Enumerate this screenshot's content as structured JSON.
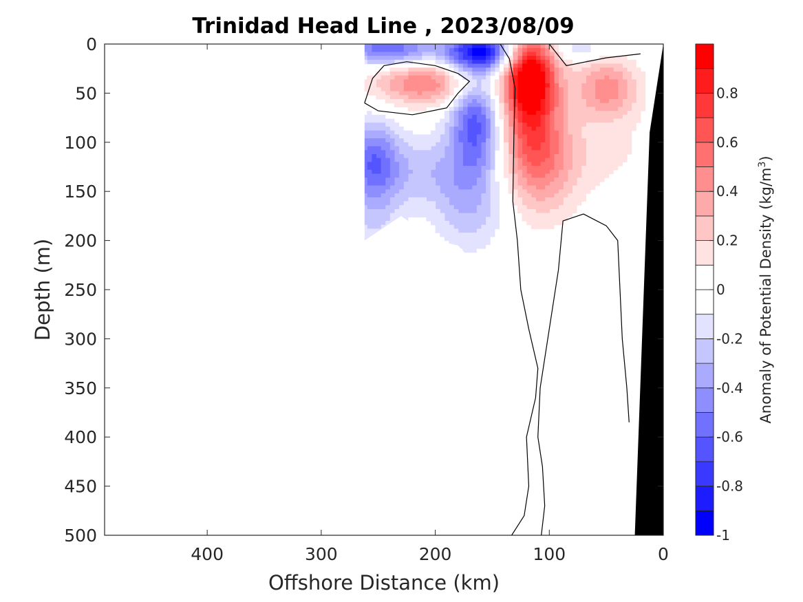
{
  "chart_data": {
    "type": "heatmap",
    "title": "Trinidad Head Line , 2023/08/09",
    "xlabel": "Offshore Distance (km)",
    "ylabel": "Depth (m)",
    "x_reversed": true,
    "y_reversed": true,
    "xlim": [
      0,
      490
    ],
    "ylim": [
      0,
      500
    ],
    "x_ticks": [
      "400",
      "300",
      "200",
      "100",
      "0"
    ],
    "x_tick_values": [
      400,
      300,
      200,
      100,
      0
    ],
    "y_ticks": [
      "0",
      "50",
      "100",
      "150",
      "200",
      "250",
      "300",
      "350",
      "400",
      "450",
      "500"
    ],
    "y_tick_values": [
      0,
      50,
      100,
      150,
      200,
      250,
      300,
      350,
      400,
      450,
      500
    ],
    "colorbar": {
      "label": "Anomaly of Potential Density (kg/m",
      "label_superscript": "3",
      "label_suffix": ")",
      "range": [
        -1,
        1
      ],
      "levels": [
        -1,
        -0.9,
        -0.8,
        -0.7,
        -0.6,
        -0.5,
        -0.4,
        -0.3,
        -0.2,
        -0.1,
        0,
        0.1,
        0.2,
        0.3,
        0.4,
        0.5,
        0.6,
        0.7,
        0.8,
        0.9,
        1
      ],
      "tick_labels": [
        "0.8",
        "0.6",
        "0.4",
        "0.2",
        "0",
        "-0.2",
        "-0.4",
        "-0.6",
        "-0.8",
        "-1"
      ],
      "tick_values": [
        0.8,
        0.6,
        0.4,
        0.2,
        0,
        -0.2,
        -0.4,
        -0.6,
        -0.8,
        -1
      ],
      "colors": {
        "negative": [
          "#0000ff",
          "#1c1cff",
          "#3939ff",
          "#5555ff",
          "#7171ff",
          "#8e8eff",
          "#aaaaff",
          "#c6c6ff",
          "#e3e3ff",
          "#ffffff"
        ],
        "positive": [
          "#ffffff",
          "#ffe3e3",
          "#ffc6c6",
          "#ffaaaa",
          "#ff8e8e",
          "#ff7171",
          "#ff5555",
          "#ff3939",
          "#ff1c1c",
          "#ff0000"
        ]
      }
    },
    "anomaly_centers": [
      {
        "x": 240,
        "depth": 5,
        "value": -0.6,
        "sx": 28,
        "sy": 12
      },
      {
        "x": 160,
        "depth": 8,
        "value": -0.9,
        "sx": 22,
        "sy": 14
      },
      {
        "x": 165,
        "depth": 80,
        "value": -0.65,
        "sx": 16,
        "sy": 35
      },
      {
        "x": 170,
        "depth": 170,
        "value": -0.25,
        "sx": 22,
        "sy": 30
      },
      {
        "x": 255,
        "depth": 115,
        "value": -0.45,
        "sx": 16,
        "sy": 28
      },
      {
        "x": 255,
        "depth": 170,
        "value": -0.2,
        "sx": 18,
        "sy": 35
      },
      {
        "x": 205,
        "depth": 130,
        "value": -0.25,
        "sx": 40,
        "sy": 25
      },
      {
        "x": 75,
        "depth": 5,
        "value": -0.2,
        "sx": 18,
        "sy": 8
      },
      {
        "x": 210,
        "depth": 40,
        "value": 0.5,
        "sx": 32,
        "sy": 16
      },
      {
        "x": 118,
        "depth": 30,
        "value": 1.0,
        "sx": 16,
        "sy": 30
      },
      {
        "x": 115,
        "depth": 90,
        "value": 0.55,
        "sx": 20,
        "sy": 40
      },
      {
        "x": 105,
        "depth": 140,
        "value": 0.2,
        "sx": 24,
        "sy": 35
      },
      {
        "x": 50,
        "depth": 45,
        "value": 0.45,
        "sx": 20,
        "sy": 22
      },
      {
        "x": 60,
        "depth": 110,
        "value": 0.12,
        "sx": 45,
        "sy": 30
      }
    ],
    "data_extent": {
      "x_max": 262,
      "depth_max_at_x_max": 200
    },
    "shelf_bottom": [
      [
        0,
        0
      ],
      [
        12,
        90
      ],
      [
        25,
        500
      ],
      [
        0,
        500
      ]
    ],
    "zero_contours": [
      [
        [
          262,
          60
        ],
        [
          255,
          35
        ],
        [
          245,
          22
        ],
        [
          225,
          18
        ],
        [
          200,
          22
        ],
        [
          180,
          30
        ],
        [
          170,
          38
        ],
        [
          180,
          50
        ],
        [
          190,
          65
        ],
        [
          220,
          72
        ],
        [
          250,
          68
        ],
        [
          262,
          60
        ]
      ],
      [
        [
          143,
          0
        ],
        [
          135,
          15
        ],
        [
          130,
          45
        ],
        [
          131,
          90
        ],
        [
          132,
          160
        ],
        [
          128,
          200
        ],
        [
          125,
          250
        ],
        [
          118,
          290
        ],
        [
          110,
          330
        ],
        [
          112,
          360
        ],
        [
          120,
          400
        ],
        [
          118,
          450
        ],
        [
          122,
          480
        ],
        [
          133,
          500
        ]
      ],
      [
        [
          100,
          0
        ],
        [
          85,
          22
        ],
        [
          50,
          14
        ],
        [
          20,
          10
        ]
      ],
      [
        [
          107,
          500
        ],
        [
          104,
          470
        ],
        [
          106,
          430
        ],
        [
          110,
          400
        ],
        [
          108,
          350
        ],
        [
          100,
          290
        ],
        [
          92,
          230
        ],
        [
          88,
          180
        ],
        [
          70,
          173
        ],
        [
          50,
          185
        ],
        [
          40,
          200
        ],
        [
          36,
          300
        ],
        [
          32,
          350
        ],
        [
          30,
          385
        ]
      ]
    ]
  }
}
